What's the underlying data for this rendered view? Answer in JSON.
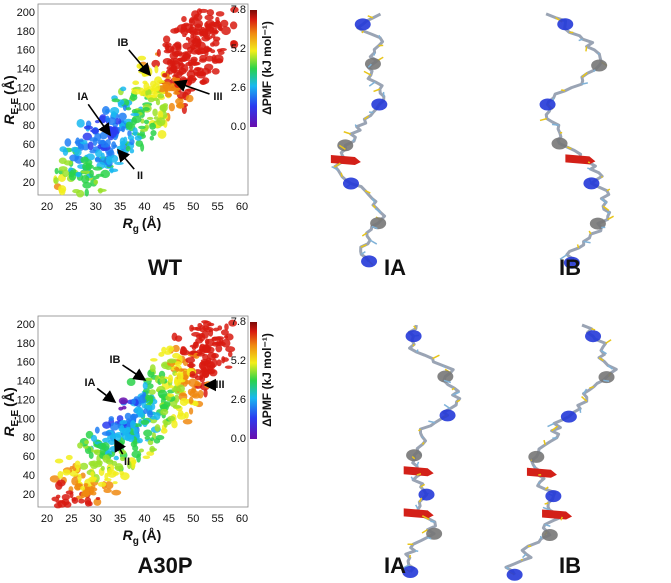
{
  "figure": {
    "panels": [
      {
        "label": "WT",
        "plot": {
          "xticks": [
            20,
            25,
            30,
            35,
            40,
            45,
            50,
            55,
            60
          ],
          "yticks": [
            20,
            40,
            60,
            80,
            100,
            120,
            140,
            160,
            180,
            200
          ],
          "xlabel": {
            "symbol": "R",
            "sub": "g",
            "unit": "(Å)"
          },
          "ylabel": {
            "symbol": "R",
            "sub": "E-E",
            "unit": "(Å)"
          },
          "colorbar": {
            "title": "ΔPMF (kJ mol⁻¹)",
            "ticks": [
              {
                "value": 0,
                "label": "0.0"
              },
              2.6,
              5.2,
              7.8
            ]
          },
          "annotations": [
            "IA",
            "IB",
            "II",
            "III"
          ]
        },
        "structures": [
          "IA",
          "IB"
        ]
      },
      {
        "label": "A30P",
        "plot": {
          "xticks": [
            20,
            25,
            30,
            35,
            40,
            45,
            50,
            55,
            60
          ],
          "yticks": [
            20,
            40,
            60,
            80,
            100,
            120,
            140,
            160,
            180,
            200
          ],
          "xlabel": {
            "symbol": "R",
            "sub": "g",
            "unit": "(Å)"
          },
          "ylabel": {
            "symbol": "R",
            "sub": "E-E",
            "unit": "(Å)"
          },
          "colorbar": {
            "title": "ΔPMF (kJ mol⁻¹)",
            "ticks": [
              {
                "value": 0,
                "label": "0.0"
              },
              2.6,
              5.2,
              7.8
            ]
          },
          "annotations": [
            "IB",
            "IA",
            "II",
            "III"
          ]
        },
        "structures": [
          "IA",
          "IB"
        ]
      }
    ]
  }
}
